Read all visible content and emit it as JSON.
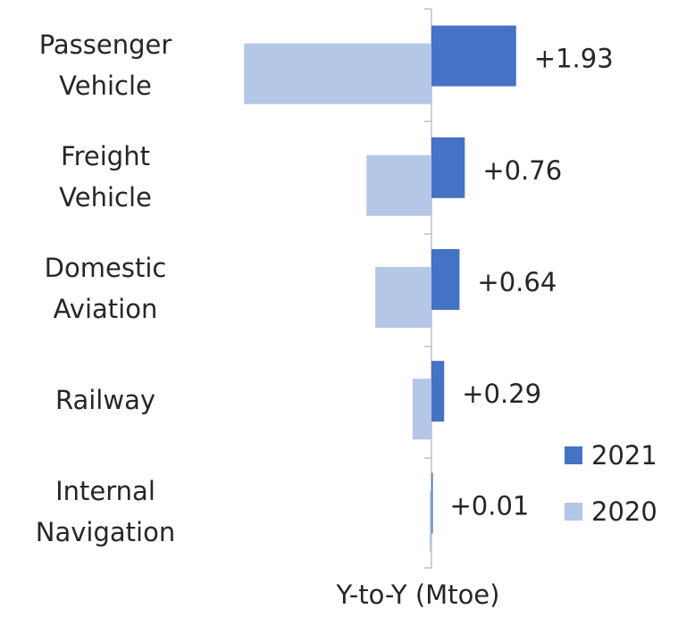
{
  "chart_data": {
    "type": "bar",
    "orientation": "horizontal",
    "categories": [
      "Passenger Vehicle",
      "Freight Vehicle",
      "Domestic Aviation",
      "Railway",
      "Internal Navigation"
    ],
    "series": [
      {
        "name": "2021",
        "color": "#4472c4",
        "values": [
          1.93,
          0.76,
          0.64,
          0.29,
          0.01
        ],
        "value_labels": [
          "+1.93",
          "+0.76",
          "+0.64",
          "+0.29",
          "+0.01"
        ]
      },
      {
        "name": "2020",
        "color": "#b4c7e7",
        "values": [
          -4.27,
          -1.48,
          -1.28,
          -0.43,
          -0.04
        ]
      }
    ],
    "xlim": [
      -4.5,
      4.5
    ],
    "xlabel": "Y-to-Y (Mtoe)",
    "legend": "lower right"
  }
}
